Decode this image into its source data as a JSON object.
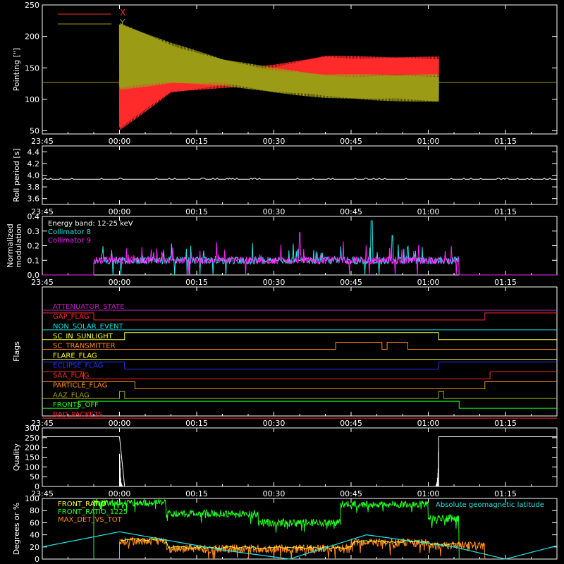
{
  "time_ticks": [
    "23:45",
    "00:00",
    "00:15",
    "00:30",
    "00:45",
    "01:00",
    "01:15"
  ],
  "colors": {
    "red": "#ff2a2a",
    "olive": "#9b9b16",
    "cyan": "#22e6e6",
    "magenta": "#ff22ff",
    "orange": "#ff8c1a",
    "yellow": "#ffff30",
    "blue": "#2233ff",
    "green": "#22ff22",
    "lightgreen": "#55ff55",
    "purple": "#c020c0",
    "brightcyan": "#11e0e0"
  },
  "chart_data": [
    {
      "id": "pointing",
      "type": "line",
      "ylabel": "Pointing [\"]",
      "ylim": [
        45,
        250
      ],
      "yticks": [
        50,
        100,
        150,
        200,
        250
      ],
      "legend": [
        {
          "name": "X",
          "color": "red"
        },
        {
          "name": "Y",
          "color": "olive"
        }
      ],
      "x_range": [
        "23:45",
        "01:25"
      ],
      "series": [
        {
          "name": "X",
          "envelope": {
            "t": [
              "00:00",
              "00:10",
              "00:20",
              "00:30",
              "00:40",
              "00:50",
              "01:02"
            ],
            "upper": [
              135,
              145,
              148,
              155,
              170,
              168,
              168
            ],
            "lower": [
              50,
              110,
              118,
              122,
              133,
              135,
              135
            ]
          }
        },
        {
          "name": "Y",
          "envelope": {
            "t": [
              "00:00",
              "00:10",
              "00:20",
              "00:30",
              "00:40",
              "00:50",
              "01:02"
            ],
            "upper": [
              222,
              190,
              165,
              150,
              140,
              140,
              140
            ],
            "lower": [
              115,
              125,
              122,
              110,
              102,
              98,
              95
            ]
          }
        }
      ],
      "baseline": 127
    },
    {
      "id": "roll",
      "type": "line",
      "ylabel": "Roll period [s]",
      "ylim": [
        3.5,
        4.5
      ],
      "yticks": [
        "3.6",
        "3.8",
        "4.0",
        "4.2",
        "4.4"
      ],
      "value": 3.93
    },
    {
      "id": "modulation",
      "type": "line",
      "ylabel_lines": [
        "Normalized",
        "modulation"
      ],
      "ylim": [
        0,
        0.4
      ],
      "yticks": [
        "0.0",
        "0.1",
        "0.2",
        "0.3",
        "0.4"
      ],
      "legend": [
        {
          "name": "Energy band: 12-25 keV",
          "color": "white"
        },
        {
          "name": "Collimator 8",
          "color": "cyan"
        },
        {
          "name": "Collimator 9",
          "color": "magenta"
        }
      ],
      "active_range": [
        "23:55",
        "01:06"
      ],
      "baseline": 0.1,
      "peaks": [
        0.37,
        0.29,
        0.27
      ]
    },
    {
      "id": "flags",
      "type": "line",
      "ylabel": "Flags",
      "flags": [
        {
          "name": "ATTENUATOR_STATE",
          "color": "purple",
          "segments": [
            [
              0,
              "23:45",
              "01:25"
            ]
          ]
        },
        {
          "name": "GAP_FLAG",
          "color": "red",
          "segments": [
            [
              1,
              "23:45",
              "23:55"
            ],
            [
              0,
              "23:55",
              "01:11"
            ],
            [
              1,
              "01:11",
              "01:25"
            ]
          ]
        },
        {
          "name": "NON_SOLAR_EVENT",
          "color": "brightcyan",
          "segments": [
            [
              0,
              "23:45",
              "01:25"
            ]
          ]
        },
        {
          "name": "SC_IN_SUNLIGHT",
          "color": "yellow",
          "segments": [
            [
              0,
              "23:45",
              "00:01"
            ],
            [
              1,
              "00:01",
              "01:02"
            ],
            [
              0,
              "01:02",
              "01:25"
            ]
          ]
        },
        {
          "name": "SC_TRANSMITTER",
          "color": "orange",
          "segments": [
            [
              0,
              "23:45",
              "00:42"
            ],
            [
              1,
              "00:42",
              "00:51"
            ],
            [
              0,
              "00:51",
              "00:52"
            ],
            [
              1,
              "00:52",
              "00:56"
            ],
            [
              0,
              "00:56",
              "01:25"
            ]
          ]
        },
        {
          "name": "FLARE_FLAG",
          "color": "yellow",
          "segments": [
            [
              0,
              "23:45",
              "01:25"
            ]
          ]
        },
        {
          "name": "ECLIPSE_FLAG",
          "color": "blue",
          "segments": [
            [
              1,
              "23:45",
              "00:01"
            ],
            [
              0,
              "00:01",
              "01:02"
            ],
            [
              1,
              "01:02",
              "01:25"
            ]
          ]
        },
        {
          "name": "SAA_FLAG",
          "color": "red",
          "segments": [
            [
              1,
              "23:45",
              "23:53"
            ],
            [
              0,
              "23:53",
              "01:12"
            ],
            [
              1,
              "01:12",
              "01:25"
            ]
          ]
        },
        {
          "name": "PARTICLE_FLAG",
          "color": "orange",
          "segments": [
            [
              1,
              "23:45",
              "00:03"
            ],
            [
              0,
              "00:03",
              "01:11"
            ],
            [
              1,
              "01:11",
              "01:25"
            ]
          ]
        },
        {
          "name": "AAZ_FLAG",
          "color": "olive",
          "segments": [
            [
              0,
              "23:45",
              "00:00"
            ],
            [
              1,
              "00:00",
              "00:01"
            ],
            [
              0,
              "00:01",
              "01:02"
            ],
            [
              1,
              "01:02",
              "01:03"
            ],
            [
              0,
              "01:03",
              "01:25"
            ]
          ]
        },
        {
          "name": "FRONTS_OFF",
          "color": "green",
          "segments": [
            [
              0,
              "23:45",
              "23:52"
            ],
            [
              1,
              "23:52",
              "01:06"
            ],
            [
              0,
              "01:06",
              "01:25"
            ]
          ]
        },
        {
          "name": "BAD_PACKETS",
          "color": "red",
          "segments": [
            [
              0,
              "23:45",
              "01:25"
            ]
          ]
        }
      ]
    },
    {
      "id": "quality",
      "type": "line",
      "ylabel": "Quality",
      "ylim": [
        0,
        300
      ],
      "yticks": [
        "0",
        "50",
        "100",
        "150",
        "200",
        "250",
        "300"
      ],
      "segments": [
        [
          255,
          "23:45",
          "00:00"
        ],
        [
          0,
          "00:01",
          "01:02"
        ],
        [
          255,
          "01:02",
          "01:25"
        ]
      ]
    },
    {
      "id": "ratios",
      "type": "line",
      "ylabel": "Degrees or %",
      "ylim": [
        0,
        100
      ],
      "yticks": [
        "0",
        "20",
        "40",
        "60",
        "80",
        "100"
      ],
      "legend": [
        {
          "name": "FRONT_RATIO",
          "color": "yellow"
        },
        {
          "name": "FRONT_RATIO_1225",
          "color": "green"
        },
        {
          "name": "MAX_DET_VS_TOT",
          "color": "orange"
        },
        {
          "name": "Absolute geomagnetic latitude",
          "color": "cyan"
        }
      ],
      "front_ratio_1225": {
        "t": [
          "23:55",
          "00:09",
          "00:09",
          "00:27",
          "00:27",
          "00:43",
          "00:43",
          "01:00",
          "01:00",
          "01:06"
        ],
        "v": [
          93,
          93,
          75,
          75,
          60,
          60,
          90,
          90,
          67,
          67
        ]
      },
      "max_det_vs_tot": {
        "t": [
          "00:00",
          "00:09",
          "00:09",
          "00:45",
          "00:45",
          "01:00",
          "01:00",
          "01:11"
        ],
        "v": [
          30,
          30,
          17,
          17,
          27,
          27,
          22,
          22
        ]
      },
      "geomag_lat": {
        "t": [
          "23:45",
          "00:00",
          "00:20",
          "00:33",
          "00:48",
          "01:05",
          "01:15",
          "01:25"
        ],
        "v": [
          20,
          45,
          15,
          0,
          40,
          20,
          0,
          22
        ]
      }
    }
  ]
}
